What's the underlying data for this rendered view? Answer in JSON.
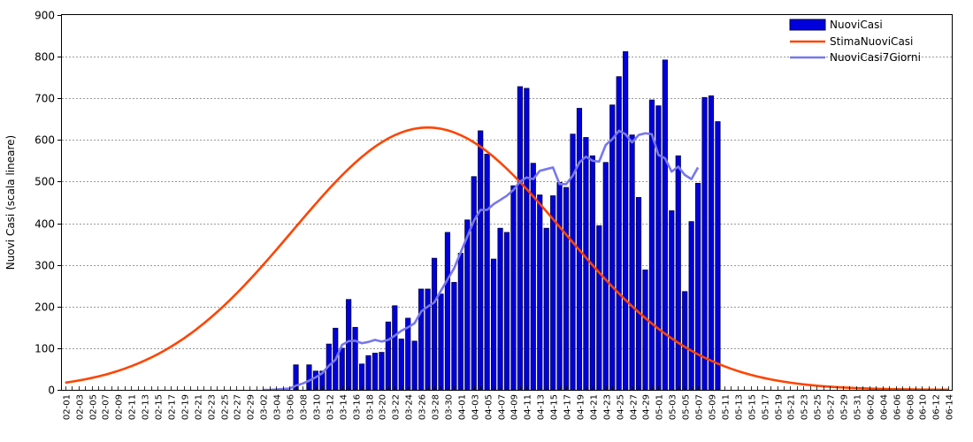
{
  "chart_data": {
    "type": "bar",
    "ylabel": "Nuovi Casi (scala lineare)",
    "ylim": [
      0,
      900
    ],
    "yticks": [
      0,
      100,
      200,
      300,
      400,
      500,
      600,
      700,
      800,
      900
    ],
    "grid": true,
    "legend_position": "top-right",
    "start_date": "2020-02-01",
    "num_days": 135,
    "label_every": 2,
    "colors": {
      "NuoviCasi": "#0000dd",
      "NuoviCasi_border": "#000044",
      "StimaNuoviCasi": "#ff4400",
      "NuoviCasi7Giorni": "#7777ee"
    },
    "series": [
      {
        "name": "NuoviCasi",
        "kind": "bar",
        "values": [
          0,
          0,
          0,
          0,
          0,
          0,
          0,
          0,
          0,
          0,
          0,
          0,
          0,
          0,
          0,
          0,
          0,
          0,
          0,
          0,
          0,
          0,
          0,
          0,
          0,
          0,
          0,
          0,
          0,
          0,
          0,
          0,
          0,
          0,
          0,
          60,
          0,
          60,
          45,
          45,
          110,
          148,
          100,
          217,
          150,
          62,
          82,
          88,
          90,
          163,
          202,
          122,
          172,
          117,
          242,
          242,
          316,
          230,
          378,
          258,
          328,
          408,
          512,
          622,
          566,
          314,
          388,
          378,
          490,
          728,
          724,
          544,
          468,
          388,
          466,
          498,
          486,
          614,
          676,
          606,
          562,
          394,
          546,
          684,
          752,
          812,
          612,
          462,
          288,
          696,
          682,
          792,
          430,
          562,
          236,
          404,
          496,
          702,
          706,
          644
        ]
      },
      {
        "name": "StimaNuoviCasi",
        "kind": "gaussian",
        "peak": 630,
        "peak_day": 55,
        "sigma": 20.5
      },
      {
        "name": "NuoviCasi7Giorni",
        "kind": "line",
        "start_day": 30,
        "values": [
          0,
          0,
          1,
          2,
          3,
          10,
          15,
          22,
          30,
          40,
          58,
          72,
          108,
          117,
          118,
          112,
          115,
          120,
          116,
          120,
          130,
          142,
          150,
          160,
          188,
          200,
          210,
          238,
          265,
          292,
          330,
          368,
          406,
          432,
          432,
          446,
          456,
          466,
          480,
          500,
          510,
          506,
          526,
          530,
          534,
          494,
          494,
          514,
          546,
          560,
          550,
          548,
          588,
          602,
          622,
          614,
          594,
          612,
          616,
          614,
          564,
          556,
          524,
          536,
          516,
          506,
          534
        ]
      }
    ]
  }
}
